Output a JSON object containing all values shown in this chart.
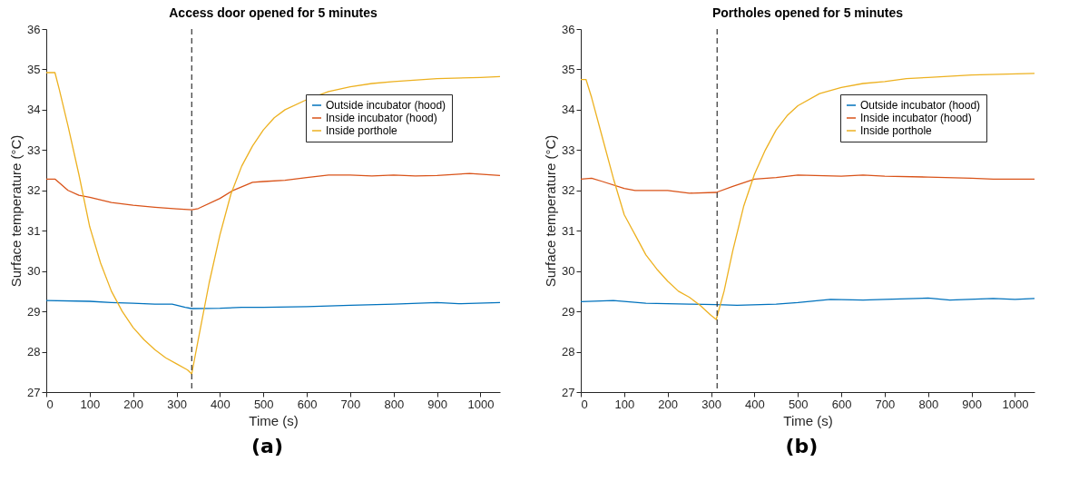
{
  "chart_data": [
    {
      "type": "line",
      "title": "Access door opened for 5 minutes",
      "xlabel": "Time (s)",
      "ylabel": "Surface temperature (°C)",
      "xlim": [
        0,
        1045
      ],
      "ylim": [
        27,
        36
      ],
      "xticks": [
        0,
        100,
        200,
        300,
        400,
        500,
        600,
        700,
        800,
        900,
        1000
      ],
      "yticks": [
        27,
        28,
        29,
        30,
        31,
        32,
        33,
        34,
        35,
        36
      ],
      "grid": false,
      "legend": "top right",
      "annotations": [
        "(a)"
      ],
      "ref_lines": [
        {
          "axis": "x",
          "value": 335,
          "line_style": "dashed",
          "color": "#333333"
        }
      ],
      "series": [
        {
          "name": "Outside incubator (hood)",
          "color": "#0072bd",
          "x": [
            0,
            100,
            150,
            200,
            250,
            290,
            320,
            335,
            400,
            450,
            500,
            600,
            700,
            800,
            900,
            950,
            1045
          ],
          "values": [
            29.27,
            29.25,
            29.22,
            29.2,
            29.18,
            29.18,
            29.1,
            29.07,
            29.08,
            29.1,
            29.1,
            29.12,
            29.15,
            29.18,
            29.22,
            29.19,
            29.22
          ]
        },
        {
          "name": "Inside incubator (hood)",
          "color": "#d95319",
          "x": [
            0,
            20,
            50,
            75,
            100,
            150,
            200,
            250,
            300,
            335,
            350,
            400,
            430,
            475,
            500,
            550,
            600,
            650,
            700,
            750,
            800,
            850,
            900,
            975,
            1045
          ],
          "values": [
            32.28,
            32.28,
            32.0,
            31.88,
            31.83,
            31.7,
            31.63,
            31.58,
            31.54,
            31.52,
            31.55,
            31.8,
            32.0,
            32.2,
            32.22,
            32.25,
            32.32,
            32.38,
            32.38,
            32.36,
            32.38,
            32.36,
            32.37,
            32.42,
            32.37
          ]
        },
        {
          "name": "Inside porthole",
          "color": "#edb120",
          "x": [
            0,
            20,
            30,
            50,
            75,
            100,
            125,
            150,
            175,
            200,
            225,
            250,
            275,
            300,
            325,
            335,
            350,
            375,
            400,
            425,
            450,
            475,
            500,
            525,
            550,
            600,
            650,
            700,
            750,
            800,
            900,
            1000,
            1045
          ],
          "values": [
            34.92,
            34.92,
            34.5,
            33.6,
            32.4,
            31.1,
            30.2,
            29.5,
            29.0,
            28.6,
            28.3,
            28.05,
            27.85,
            27.7,
            27.55,
            27.45,
            28.3,
            29.7,
            30.9,
            31.9,
            32.6,
            33.1,
            33.5,
            33.8,
            34.0,
            34.25,
            34.45,
            34.57,
            34.65,
            34.7,
            34.77,
            34.8,
            34.82
          ]
        }
      ]
    },
    {
      "type": "line",
      "title": "Portholes opened for 5 minutes",
      "xlabel": "Time (s)",
      "ylabel": "Surface temperature (°C)",
      "xlim": [
        0,
        1045
      ],
      "ylim": [
        27,
        36
      ],
      "xticks": [
        0,
        100,
        200,
        300,
        400,
        500,
        600,
        700,
        800,
        900,
        1000
      ],
      "yticks": [
        27,
        28,
        29,
        30,
        31,
        32,
        33,
        34,
        35,
        36
      ],
      "grid": false,
      "legend": "top right",
      "annotations": [
        "(b)"
      ],
      "ref_lines": [
        {
          "axis": "x",
          "value": 314,
          "line_style": "dashed",
          "color": "#333333"
        }
      ],
      "series": [
        {
          "name": "Outside incubator (hood)",
          "color": "#0072bd",
          "x": [
            0,
            75,
            150,
            250,
            312,
            360,
            450,
            500,
            575,
            650,
            700,
            800,
            850,
            950,
            1000,
            1045
          ],
          "values": [
            29.24,
            29.27,
            29.2,
            29.18,
            29.17,
            29.15,
            29.18,
            29.22,
            29.3,
            29.28,
            29.3,
            29.33,
            29.28,
            29.32,
            29.3,
            29.32
          ]
        },
        {
          "name": "Inside incubator (hood)",
          "color": "#d95319",
          "x": [
            0,
            25,
            50,
            100,
            125,
            200,
            250,
            312,
            350,
            400,
            450,
            500,
            600,
            650,
            700,
            800,
            900,
            950,
            1045
          ],
          "values": [
            32.28,
            32.3,
            32.22,
            32.05,
            32.0,
            32.0,
            31.93,
            31.95,
            32.1,
            32.28,
            32.32,
            32.38,
            32.35,
            32.38,
            32.35,
            32.33,
            32.3,
            32.28,
            32.28
          ]
        },
        {
          "name": "Inside porthole",
          "color": "#edb120",
          "x": [
            0,
            12,
            25,
            50,
            75,
            100,
            125,
            150,
            175,
            200,
            225,
            250,
            275,
            300,
            312,
            330,
            350,
            375,
            400,
            425,
            450,
            475,
            500,
            550,
            600,
            650,
            700,
            750,
            800,
            900,
            1045
          ],
          "values": [
            34.75,
            34.75,
            34.3,
            33.3,
            32.3,
            31.4,
            30.9,
            30.4,
            30.05,
            29.75,
            29.5,
            29.35,
            29.15,
            28.9,
            28.8,
            29.5,
            30.5,
            31.6,
            32.4,
            33.0,
            33.5,
            33.85,
            34.1,
            34.4,
            34.55,
            34.65,
            34.7,
            34.77,
            34.8,
            34.86,
            34.9
          ]
        }
      ]
    }
  ]
}
